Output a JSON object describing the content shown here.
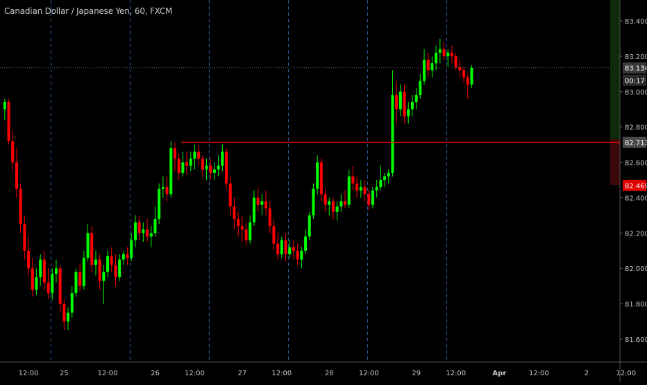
{
  "chart_data": {
    "type": "candlestick",
    "title": "Canadian Dollar / Japanese Yen, 60, FXCM",
    "y_ticks": [
      "81.600",
      "81.800",
      "82.000",
      "82.200",
      "82.400",
      "82.600",
      "82.800",
      "83.000",
      "83.200",
      "83.400"
    ],
    "y_tick_values": [
      81.6,
      81.8,
      82.0,
      82.2,
      82.4,
      82.6,
      82.8,
      83.0,
      83.2,
      83.4
    ],
    "ylim": [
      81.47,
      83.52
    ],
    "x_tick_labels": [
      "12:00",
      "25",
      "12:00",
      "26",
      "12:00",
      "27",
      "12:00",
      "28",
      "12:00",
      "29",
      "12:00",
      "Apr",
      "12:00",
      "2",
      "12:00"
    ],
    "x_tick_bold": [
      false,
      false,
      false,
      false,
      false,
      false,
      false,
      false,
      false,
      false,
      false,
      true,
      false,
      false,
      false
    ],
    "x_tick_index": [
      6,
      15,
      26,
      38,
      48,
      60,
      70,
      82,
      92,
      104,
      114,
      125,
      135,
      147,
      157
    ],
    "session_separators_index": [
      12,
      32,
      52,
      72,
      92,
      112
    ],
    "price_labels": {
      "current": {
        "text": "83.134",
        "value": 83.134,
        "color": "#3a3a3a"
      },
      "countdown": {
        "text": "00:17"
      },
      "resistance": {
        "text": "82.713",
        "value": 82.713,
        "color": "#4a4a4a"
      },
      "day_low": {
        "text": "82.469",
        "value": 82.469,
        "color": "#e00000"
      }
    },
    "resistance_line": {
      "value": 82.713,
      "start_index": 45,
      "color": "#ff0000"
    },
    "colors": {
      "up": "#00ff00",
      "down": "#ff0000",
      "grid": "#2f5fa8",
      "text": "#c9c9c9"
    },
    "candles": [
      [
        82.9,
        82.96,
        82.84,
        82.94
      ],
      [
        82.94,
        82.96,
        82.7,
        82.72
      ],
      [
        82.72,
        82.78,
        82.55,
        82.6
      ],
      [
        82.6,
        82.68,
        82.4,
        82.45
      ],
      [
        82.45,
        82.48,
        82.2,
        82.25
      ],
      [
        82.25,
        82.3,
        82.05,
        82.1
      ],
      [
        82.1,
        82.18,
        81.95,
        82.0
      ],
      [
        82.0,
        82.06,
        81.84,
        81.88
      ],
      [
        81.88,
        82.0,
        81.85,
        81.95
      ],
      [
        81.95,
        82.08,
        81.9,
        82.05
      ],
      [
        82.05,
        82.1,
        81.88,
        81.92
      ],
      [
        81.92,
        82.0,
        81.83,
        81.86
      ],
      [
        81.86,
        82.0,
        81.82,
        81.97
      ],
      [
        81.97,
        82.05,
        81.92,
        82.0
      ],
      [
        82.0,
        82.02,
        81.75,
        81.8
      ],
      [
        81.8,
        81.82,
        81.65,
        81.7
      ],
      [
        81.7,
        81.78,
        81.65,
        81.75
      ],
      [
        81.75,
        81.9,
        81.72,
        81.86
      ],
      [
        81.86,
        82.0,
        81.84,
        81.98
      ],
      [
        81.98,
        82.03,
        81.87,
        81.9
      ],
      [
        81.9,
        82.1,
        81.88,
        82.06
      ],
      [
        82.06,
        82.25,
        82.04,
        82.2
      ],
      [
        82.2,
        82.24,
        81.98,
        82.02
      ],
      [
        82.02,
        82.1,
        81.96,
        82.05
      ],
      [
        82.05,
        82.08,
        81.88,
        81.93
      ],
      [
        81.93,
        82.02,
        81.8,
        81.98
      ],
      [
        81.98,
        82.1,
        81.95,
        82.07
      ],
      [
        82.07,
        82.12,
        81.98,
        82.02
      ],
      [
        82.02,
        82.08,
        81.9,
        81.95
      ],
      [
        81.95,
        82.08,
        81.93,
        82.05
      ],
      [
        82.05,
        82.1,
        82.02,
        82.08
      ],
      [
        82.08,
        82.12,
        82.02,
        82.06
      ],
      [
        82.06,
        82.2,
        82.04,
        82.16
      ],
      [
        82.16,
        82.3,
        82.12,
        82.26
      ],
      [
        82.26,
        82.3,
        82.16,
        82.2
      ],
      [
        82.2,
        82.26,
        82.15,
        82.22
      ],
      [
        82.22,
        82.28,
        82.15,
        82.18
      ],
      [
        82.18,
        82.24,
        82.12,
        82.2
      ],
      [
        82.2,
        82.35,
        82.18,
        82.28
      ],
      [
        82.28,
        82.48,
        82.25,
        82.45
      ],
      [
        82.45,
        82.52,
        82.4,
        82.46
      ],
      [
        82.46,
        82.52,
        82.38,
        82.42
      ],
      [
        82.42,
        82.72,
        82.4,
        82.68
      ],
      [
        82.68,
        82.71,
        82.55,
        82.62
      ],
      [
        82.62,
        82.65,
        82.5,
        82.54
      ],
      [
        82.54,
        82.66,
        82.52,
        82.6
      ],
      [
        82.6,
        82.66,
        82.53,
        82.58
      ],
      [
        82.58,
        82.66,
        82.55,
        82.62
      ],
      [
        82.62,
        82.7,
        82.56,
        82.66
      ],
      [
        82.66,
        82.7,
        82.58,
        82.62
      ],
      [
        82.62,
        82.64,
        82.52,
        82.56
      ],
      [
        82.56,
        82.62,
        82.5,
        82.58
      ],
      [
        82.58,
        82.62,
        82.5,
        82.54
      ],
      [
        82.54,
        82.6,
        82.5,
        82.56
      ],
      [
        82.56,
        82.64,
        82.52,
        82.58
      ],
      [
        82.58,
        82.7,
        82.55,
        82.66
      ],
      [
        82.66,
        82.68,
        82.45,
        82.48
      ],
      [
        82.48,
        82.52,
        82.3,
        82.35
      ],
      [
        82.35,
        82.4,
        82.22,
        82.28
      ],
      [
        82.28,
        82.32,
        82.18,
        82.24
      ],
      [
        82.24,
        82.3,
        82.15,
        82.22
      ],
      [
        82.22,
        82.26,
        82.13,
        82.16
      ],
      [
        82.16,
        82.3,
        82.14,
        82.26
      ],
      [
        82.26,
        82.44,
        82.24,
        82.4
      ],
      [
        82.4,
        82.46,
        82.32,
        82.36
      ],
      [
        82.36,
        82.42,
        82.3,
        82.38
      ],
      [
        82.38,
        82.44,
        82.3,
        82.34
      ],
      [
        82.34,
        82.38,
        82.2,
        82.24
      ],
      [
        82.24,
        82.28,
        82.1,
        82.14
      ],
      [
        82.14,
        82.2,
        82.05,
        82.08
      ],
      [
        82.08,
        82.18,
        82.06,
        82.16
      ],
      [
        82.16,
        82.2,
        82.04,
        82.08
      ],
      [
        82.08,
        82.16,
        82.06,
        82.12
      ],
      [
        82.12,
        82.16,
        82.05,
        82.1
      ],
      [
        82.1,
        82.14,
        82.02,
        82.05
      ],
      [
        82.05,
        82.12,
        82.0,
        82.1
      ],
      [
        82.1,
        82.22,
        82.08,
        82.18
      ],
      [
        82.18,
        82.32,
        82.16,
        82.3
      ],
      [
        82.3,
        82.48,
        82.28,
        82.45
      ],
      [
        82.45,
        82.64,
        82.42,
        82.6
      ],
      [
        82.6,
        82.62,
        82.38,
        82.42
      ],
      [
        82.42,
        82.45,
        82.32,
        82.36
      ],
      [
        82.36,
        82.4,
        82.3,
        82.38
      ],
      [
        82.38,
        82.4,
        82.28,
        82.32
      ],
      [
        82.32,
        82.38,
        82.27,
        82.35
      ],
      [
        82.35,
        82.42,
        82.32,
        82.38
      ],
      [
        82.38,
        82.44,
        82.34,
        82.36
      ],
      [
        82.36,
        82.56,
        82.34,
        82.52
      ],
      [
        82.52,
        82.58,
        82.44,
        82.48
      ],
      [
        82.48,
        82.52,
        82.4,
        82.44
      ],
      [
        82.44,
        82.5,
        82.4,
        82.46
      ],
      [
        82.46,
        82.5,
        82.38,
        82.42
      ],
      [
        82.42,
        82.44,
        82.33,
        82.36
      ],
      [
        82.36,
        82.46,
        82.34,
        82.44
      ],
      [
        82.44,
        82.5,
        82.4,
        82.46
      ],
      [
        82.46,
        82.58,
        82.44,
        82.5
      ],
      [
        82.5,
        82.54,
        82.46,
        82.52
      ],
      [
        82.52,
        82.56,
        82.48,
        82.54
      ],
      [
        82.54,
        83.12,
        82.52,
        82.98
      ],
      [
        82.98,
        83.06,
        82.82,
        82.9
      ],
      [
        82.9,
        83.04,
        82.86,
        83.0
      ],
      [
        83.0,
        83.04,
        82.82,
        82.86
      ],
      [
        82.86,
        82.94,
        82.82,
        82.9
      ],
      [
        82.9,
        82.98,
        82.86,
        82.94
      ],
      [
        82.94,
        83.02,
        82.9,
        82.98
      ],
      [
        82.98,
        83.1,
        82.96,
        83.06
      ],
      [
        83.06,
        83.24,
        83.04,
        83.18
      ],
      [
        83.18,
        83.22,
        83.08,
        83.12
      ],
      [
        83.12,
        83.2,
        83.08,
        83.16
      ],
      [
        83.16,
        83.26,
        83.12,
        83.22
      ],
      [
        83.22,
        83.3,
        83.16,
        83.24
      ],
      [
        83.24,
        83.28,
        83.18,
        83.2
      ],
      [
        83.2,
        83.24,
        83.14,
        83.22
      ],
      [
        83.22,
        83.26,
        83.16,
        83.2
      ],
      [
        83.2,
        83.22,
        83.12,
        83.14
      ],
      [
        83.14,
        83.18,
        83.08,
        83.12
      ],
      [
        83.12,
        83.14,
        83.05,
        83.08
      ],
      [
        83.08,
        83.1,
        82.96,
        83.04
      ],
      [
        83.04,
        83.15,
        83.02,
        83.134
      ]
    ]
  }
}
